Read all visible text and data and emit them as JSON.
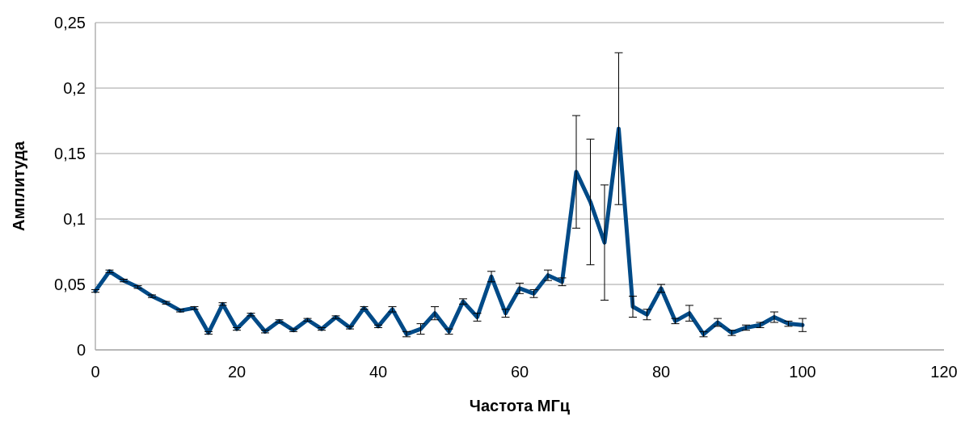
{
  "chart_data": {
    "type": "line",
    "xlabel": "Частота МГц",
    "ylabel": "Амплитуда",
    "x": [
      0,
      2,
      4,
      6,
      8,
      10,
      12,
      14,
      16,
      18,
      20,
      22,
      24,
      26,
      28,
      30,
      32,
      34,
      36,
      38,
      40,
      42,
      44,
      46,
      48,
      50,
      52,
      54,
      56,
      58,
      60,
      62,
      64,
      66,
      68,
      70,
      72,
      74,
      76,
      78,
      80,
      82,
      84,
      86,
      88,
      90,
      92,
      94,
      96,
      98,
      100
    ],
    "series": [
      {
        "color": "#004a87",
        "values": [
          0.045,
          0.06,
          0.053,
          0.048,
          0.041,
          0.036,
          0.03,
          0.032,
          0.013,
          0.035,
          0.016,
          0.027,
          0.014,
          0.022,
          0.015,
          0.023,
          0.016,
          0.025,
          0.017,
          0.032,
          0.018,
          0.031,
          0.012,
          0.016,
          0.028,
          0.014,
          0.037,
          0.025,
          0.056,
          0.028,
          0.047,
          0.043,
          0.057,
          0.052,
          0.136,
          0.113,
          0.082,
          0.169,
          0.033,
          0.027,
          0.047,
          0.022,
          0.028,
          0.012,
          0.021,
          0.013,
          0.017,
          0.019,
          0.025,
          0.02,
          0.019
        ],
        "errors": [
          0.001,
          0.001,
          0.001,
          0.001,
          0.001,
          0.001,
          0.001,
          0.001,
          0.001,
          0.001,
          0.001,
          0.001,
          0.001,
          0.001,
          0.001,
          0.001,
          0.001,
          0.001,
          0.001,
          0.001,
          0.001,
          0.002,
          0.002,
          0.004,
          0.005,
          0.002,
          0.002,
          0.003,
          0.004,
          0.003,
          0.004,
          0.003,
          0.004,
          0.003,
          0.043,
          0.048,
          0.044,
          0.058,
          0.008,
          0.004,
          0.003,
          0.002,
          0.006,
          0.002,
          0.003,
          0.002,
          0.002,
          0.002,
          0.004,
          0.002,
          0.005
        ]
      }
    ],
    "xlim": [
      0,
      120
    ],
    "xticks": [
      0,
      20,
      40,
      60,
      80,
      100,
      120
    ],
    "ylim": [
      0,
      0.25
    ],
    "yticks": [
      {
        "value": 0,
        "label": "0"
      },
      {
        "value": 0.05,
        "label": "0,05"
      },
      {
        "value": 0.1,
        "label": "0,1"
      },
      {
        "value": 0.15,
        "label": "0,15"
      },
      {
        "value": 0.2,
        "label": "0,2"
      },
      {
        "value": 0.25,
        "label": "0,25"
      }
    ],
    "grid": "y",
    "marker": "none",
    "line_style": "solid"
  }
}
